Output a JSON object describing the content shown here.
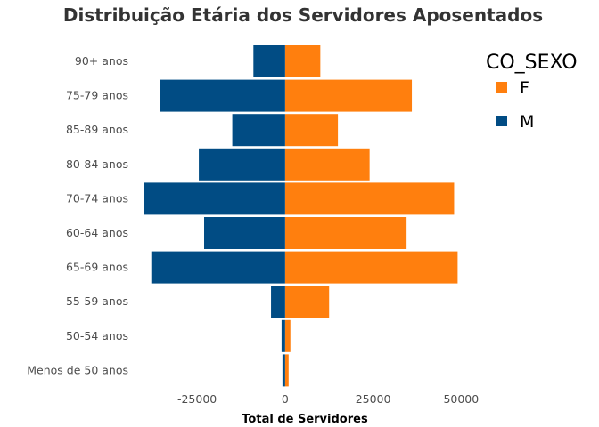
{
  "chart_data": {
    "type": "bar",
    "orientation": "horizontal",
    "title": "Distribuição Etária dos Servidores Aposentados",
    "xlabel": "Total de Servidores",
    "ylabel": "",
    "categories": [
      "90+ anos",
      "75-79 anos",
      "85-89 anos",
      "80-84 anos",
      "70-74 anos",
      "60-64 anos",
      "65-69 anos",
      "55-59 anos",
      "50-54 anos",
      "Menos de 50 anos"
    ],
    "series": [
      {
        "name": "F",
        "color": "#FF7F0E",
        "values": [
          10000,
          36000,
          15000,
          24000,
          48000,
          34500,
          49000,
          12500,
          1500,
          1000
        ]
      },
      {
        "name": "M",
        "color": "#014C84",
        "values": [
          -9000,
          -35500,
          -15000,
          -24500,
          -40000,
          -23000,
          -38000,
          -4000,
          -1000,
          -750
        ]
      }
    ],
    "xlim": [
      -43000,
      57000
    ],
    "xticks": [
      -25000,
      0,
      25000,
      50000
    ],
    "xtick_labels": [
      "-25000",
      "0",
      "25000",
      "50000"
    ],
    "grid": false,
    "legend": {
      "title": "CO_SEXO",
      "position": "right",
      "items": [
        "F",
        "M"
      ]
    }
  }
}
